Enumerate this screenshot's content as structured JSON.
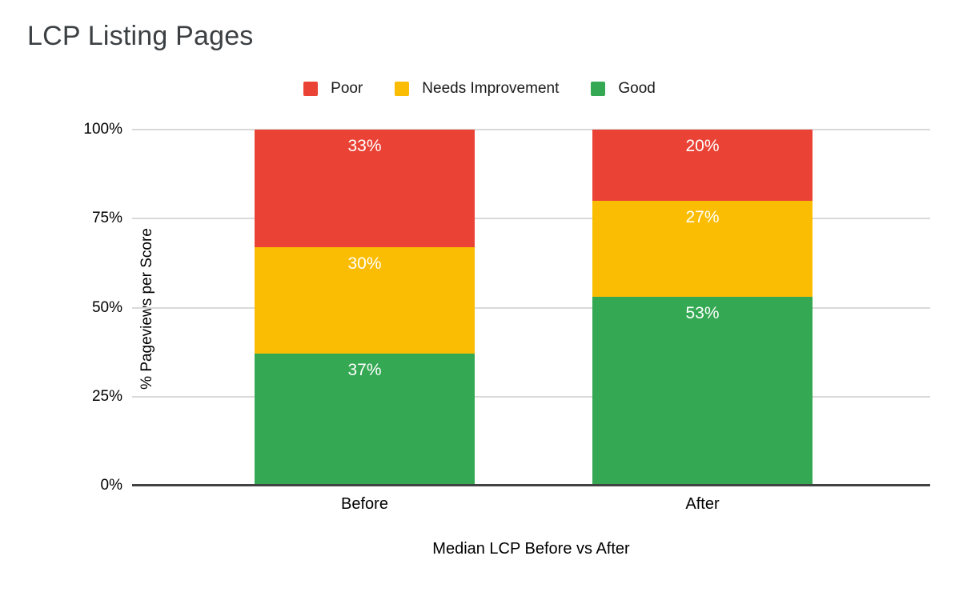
{
  "page": {
    "background": "#FFFFFF"
  },
  "chart_data": {
    "type": "bar",
    "variant": "stacked-percent",
    "title": "LCP Listing Pages",
    "categories": [
      "Before",
      "After"
    ],
    "series": [
      {
        "name": "Poor",
        "color": "#EA4335",
        "values": [
          33,
          20
        ]
      },
      {
        "name": "Needs Improvement",
        "color": "#FBBC04",
        "values": [
          30,
          27
        ]
      },
      {
        "name": "Good",
        "color": "#34A853",
        "values": [
          37,
          53
        ]
      }
    ],
    "stack_order_bottom_to_top": [
      "Good",
      "Needs Improvement",
      "Poor"
    ],
    "xlabel": "Median LCP Before vs After",
    "ylabel": "% Pageviews per Score",
    "ylim": [
      0,
      100
    ],
    "y_ticks": [
      {
        "value": 0,
        "label": "0%"
      },
      {
        "value": 25,
        "label": "25%"
      },
      {
        "value": 50,
        "label": "50%"
      },
      {
        "value": 75,
        "label": "75%"
      },
      {
        "value": 100,
        "label": "100%"
      }
    ],
    "value_suffix": "%",
    "legend_position": "top",
    "grid": true
  },
  "colors": {
    "gridline": "#D9D9D9",
    "axis_line": "#424242",
    "title_text": "#3C4043",
    "axis_text": "#000000",
    "bar_label_text": "#FFFFFF"
  }
}
